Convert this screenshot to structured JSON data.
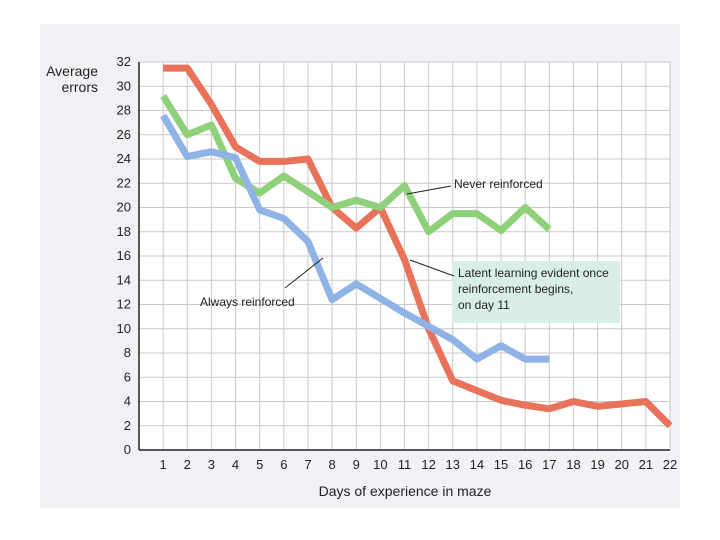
{
  "chart_data": {
    "type": "line",
    "ylabel_lines": [
      "Average",
      "errors"
    ],
    "xlabel": "Days of experience in maze",
    "x": [
      1,
      2,
      3,
      4,
      5,
      6,
      7,
      8,
      9,
      10,
      11,
      12,
      13,
      14,
      15,
      16,
      17,
      18,
      19,
      20,
      21,
      22
    ],
    "xlim": [
      0,
      22
    ],
    "ylim": [
      0,
      32
    ],
    "yticks": [
      0,
      2,
      4,
      6,
      8,
      10,
      12,
      14,
      16,
      18,
      20,
      22,
      24,
      26,
      28,
      30,
      32
    ],
    "grid": true,
    "series": [
      {
        "key": "latent",
        "color": "#e8735a",
        "x": [
          1,
          2,
          3,
          4,
          5,
          6,
          7,
          8,
          9,
          10,
          11,
          12,
          13,
          14,
          15,
          16,
          17,
          18,
          19,
          20,
          21,
          22
        ],
        "values": [
          31.5,
          31.5,
          28.5,
          25.0,
          23.8,
          23.8,
          24.0,
          20.0,
          18.3,
          20.0,
          15.7,
          10.0,
          5.7,
          4.9,
          4.1,
          3.7,
          3.4,
          4.0,
          3.6,
          3.8,
          4.0,
          2.0
        ]
      },
      {
        "key": "never",
        "color": "#8fd17a",
        "x": [
          1,
          2,
          3,
          4,
          5,
          6,
          7,
          8,
          9,
          10,
          11,
          12,
          13,
          14,
          15,
          16,
          17
        ],
        "values": [
          29.2,
          26.0,
          26.8,
          22.4,
          21.2,
          22.6,
          21.3,
          20.0,
          20.6,
          20.0,
          21.8,
          18.0,
          19.5,
          19.5,
          18.1,
          20.0,
          18.2
        ]
      },
      {
        "key": "always",
        "color": "#8fb3e6",
        "x": [
          1,
          2,
          3,
          4,
          5,
          6,
          7,
          8,
          9,
          10,
          11,
          12,
          13,
          14,
          15,
          16,
          17
        ],
        "values": [
          27.6,
          24.2,
          24.6,
          24.1,
          19.8,
          19.1,
          17.2,
          12.4,
          13.7,
          12.5,
          11.3,
          10.2,
          9.1,
          7.5,
          8.6,
          7.5,
          7.5
        ]
      }
    ],
    "annotations": {
      "never": "Never reinforced",
      "always": "Always reinforced",
      "latent_lines": [
        "Latent learning evident once",
        "reinforcement begins,",
        "on day 11"
      ]
    },
    "annotation_box_color": "#d9efe6"
  }
}
